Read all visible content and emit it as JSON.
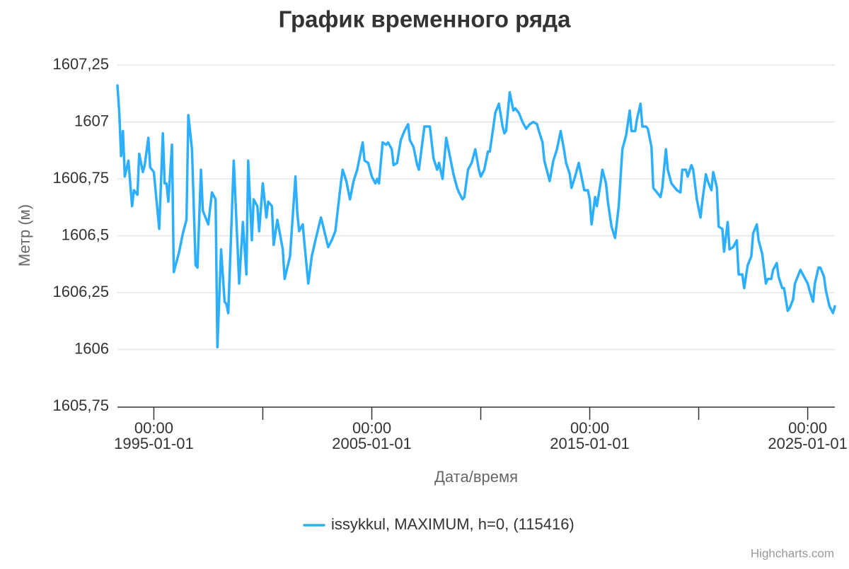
{
  "chart_data": {
    "type": "line",
    "title": "График временного ряда",
    "xlabel": "Дата/время",
    "ylabel": "Метр (м)",
    "credits": "Highcharts.com",
    "x": [
      "1993-05-01",
      "1993-06-01",
      "1993-07-01",
      "1993-08-01",
      "1993-09-01",
      "1993-11-01",
      "1994-01-01",
      "1994-02-01",
      "1994-04-01",
      "1994-05-01",
      "1994-07-01",
      "1994-08-01",
      "1994-10-01",
      "1994-11-01",
      "1995-01-01",
      "1995-04-01",
      "1995-06-01",
      "1995-07-01",
      "1995-08-01",
      "1995-09-01",
      "1995-11-01",
      "1995-12-01",
      "1996-03-01",
      "1996-05-01",
      "1996-07-01",
      "1996-08-01",
      "1996-10-01",
      "1996-12-01",
      "1997-01-01",
      "1997-03-01",
      "1997-04-01",
      "1997-07-01",
      "1997-09-01",
      "1997-11-01",
      "1997-12-01",
      "1998-02-01",
      "1998-04-01",
      "1998-05-01",
      "1998-06-01",
      "1998-09-01",
      "1998-12-01",
      "1999-02-01",
      "1999-04-01",
      "1999-05-01",
      "1999-07-01",
      "1999-08-01",
      "1999-10-01",
      "1999-11-01",
      "2000-01-01",
      "2000-03-01",
      "2000-04-01",
      "2000-06-01",
      "2000-07-01",
      "2000-09-01",
      "2000-12-01",
      "2001-01-01",
      "2001-04-01",
      "2001-07-01",
      "2001-08-01",
      "2001-09-01",
      "2001-11-01",
      "2001-12-01",
      "2002-02-01",
      "2002-04-01",
      "2002-06-01",
      "2002-09-01",
      "2002-10-01",
      "2003-01-01",
      "2003-03-01",
      "2003-05-01",
      "2003-08-01",
      "2003-09-01",
      "2003-11-01",
      "2004-01-01",
      "2004-03-01",
      "2004-05-01",
      "2004-08-01",
      "2004-09-01",
      "2004-11-01",
      "2005-01-01",
      "2005-03-01",
      "2005-04-01",
      "2005-05-01",
      "2005-07-01",
      "2005-09-01",
      "2005-10-01",
      "2005-12-01",
      "2006-01-01",
      "2006-03-01",
      "2006-05-01",
      "2006-07-01",
      "2006-09-01",
      "2006-10-01",
      "2006-12-01",
      "2007-02-01",
      "2007-03-01",
      "2007-06-01",
      "2007-07-01",
      "2007-09-01",
      "2007-11-01",
      "2008-01-01",
      "2008-02-01",
      "2008-04-01",
      "2008-06-01",
      "2008-08-01",
      "2008-10-01",
      "2008-12-01",
      "2009-01-01",
      "2009-03-01",
      "2009-04-01",
      "2009-06-01",
      "2009-08-01",
      "2009-10-01",
      "2009-12-01",
      "2010-01-01",
      "2010-03-01",
      "2010-05-01",
      "2010-06-01",
      "2010-08-01",
      "2010-09-01",
      "2010-11-01",
      "2011-01-01",
      "2011-02-01",
      "2011-03-01",
      "2011-05-01",
      "2011-07-01",
      "2011-08-01",
      "2011-10-01",
      "2011-12-01",
      "2012-02-01",
      "2012-04-01",
      "2012-06-01",
      "2012-08-01",
      "2012-09-01",
      "2012-11-01",
      "2012-12-01",
      "2013-03-01",
      "2013-05-01",
      "2013-07-01",
      "2013-09-01",
      "2013-11-01",
      "2013-12-01",
      "2014-02-01",
      "2014-03-01",
      "2014-05-01",
      "2014-07-01",
      "2014-09-01",
      "2014-10-01",
      "2014-12-01",
      "2015-01-01",
      "2015-02-01",
      "2015-04-01",
      "2015-05-01",
      "2015-07-01",
      "2015-08-01",
      "2015-10-01",
      "2015-11-01",
      "2016-01-01",
      "2016-03-01",
      "2016-05-01",
      "2016-07-01",
      "2016-09-01",
      "2016-11-01",
      "2016-12-01",
      "2017-02-01",
      "2017-03-01",
      "2017-05-01",
      "2017-06-01",
      "2017-08-01",
      "2017-09-01",
      "2017-11-01",
      "2017-12-01",
      "2018-02-01",
      "2018-04-01",
      "2018-05-01",
      "2018-07-01",
      "2018-08-01",
      "2018-10-01",
      "2018-12-01",
      "2019-01-01",
      "2019-03-01",
      "2019-04-01",
      "2019-06-01",
      "2019-07-01",
      "2019-09-01",
      "2019-10-01",
      "2019-12-01",
      "2020-02-01",
      "2020-03-01",
      "2020-05-01",
      "2020-06-01",
      "2020-08-01",
      "2020-09-01",
      "2020-11-01",
      "2020-12-01",
      "2021-02-01",
      "2021-03-01",
      "2021-05-01",
      "2021-06-01",
      "2021-08-01",
      "2021-10-01",
      "2021-11-01",
      "2022-01-01",
      "2022-02-01",
      "2022-04-01",
      "2022-06-01",
      "2022-07-01",
      "2022-09-01",
      "2022-10-01",
      "2022-12-01",
      "2023-02-01",
      "2023-03-01",
      "2023-05-01",
      "2023-06-01",
      "2023-08-01",
      "2023-09-01",
      "2023-11-01",
      "2023-12-01",
      "2024-02-01",
      "2024-03-01",
      "2024-05-01",
      "2024-06-01",
      "2024-08-01",
      "2024-09-01",
      "2024-11-01",
      "2025-01-01",
      "2025-02-01",
      "2025-04-01",
      "2025-05-01",
      "2025-07-01",
      "2025-08-01",
      "2025-10-01",
      "2025-11-01",
      "2026-01-01",
      "2026-03-01",
      "2026-04-01"
    ],
    "series": [
      {
        "name": "issykkul, MAXIMUM, h=0, (115416)",
        "color": "#2caffe",
        "values": [
          1607.16,
          1607.04,
          1606.85,
          1606.96,
          1606.76,
          1606.83,
          1606.63,
          1606.7,
          1606.68,
          1606.86,
          1606.78,
          1606.81,
          1606.93,
          1606.8,
          1606.78,
          1606.53,
          1606.95,
          1606.73,
          1606.73,
          1606.65,
          1606.9,
          1606.34,
          1606.43,
          1606.51,
          1606.57,
          1607.03,
          1606.88,
          1606.37,
          1606.36,
          1606.79,
          1606.61,
          1606.55,
          1606.69,
          1606.66,
          1606.01,
          1606.44,
          1606.21,
          1606.2,
          1606.16,
          1606.83,
          1606.29,
          1606.56,
          1606.33,
          1606.83,
          1606.48,
          1606.66,
          1606.63,
          1606.52,
          1606.73,
          1606.58,
          1606.65,
          1606.63,
          1606.46,
          1606.57,
          1606.44,
          1606.31,
          1606.41,
          1606.76,
          1606.6,
          1606.52,
          1606.55,
          1606.46,
          1606.29,
          1606.41,
          1606.48,
          1606.58,
          1606.55,
          1606.45,
          1606.48,
          1606.52,
          1606.73,
          1606.79,
          1606.74,
          1606.66,
          1606.74,
          1606.79,
          1606.91,
          1606.83,
          1606.82,
          1606.76,
          1606.73,
          1606.75,
          1606.73,
          1606.91,
          1606.9,
          1606.91,
          1606.88,
          1606.81,
          1606.82,
          1606.92,
          1606.96,
          1606.99,
          1606.92,
          1606.89,
          1606.81,
          1606.79,
          1606.98,
          1606.98,
          1606.98,
          1606.84,
          1606.79,
          1606.82,
          1606.75,
          1606.93,
          1606.85,
          1606.77,
          1606.71,
          1606.69,
          1606.66,
          1606.67,
          1606.79,
          1606.82,
          1606.88,
          1606.79,
          1606.76,
          1606.79,
          1606.87,
          1606.87,
          1606.98,
          1607.04,
          1607.08,
          1606.98,
          1606.95,
          1606.96,
          1607.13,
          1607.05,
          1607.06,
          1607.04,
          1607.0,
          1606.97,
          1606.99,
          1607.0,
          1606.99,
          1606.96,
          1606.91,
          1606.83,
          1606.74,
          1606.83,
          1606.88,
          1606.96,
          1606.87,
          1606.82,
          1606.77,
          1606.71,
          1606.76,
          1606.82,
          1606.74,
          1606.7,
          1606.7,
          1606.66,
          1606.55,
          1606.67,
          1606.63,
          1606.73,
          1606.79,
          1606.73,
          1606.65,
          1606.54,
          1606.49,
          1606.63,
          1606.88,
          1606.94,
          1607.05,
          1606.96,
          1606.96,
          1607.01,
          1607.08,
          1606.98,
          1606.98,
          1606.97,
          1606.89,
          1606.71,
          1606.69,
          1606.67,
          1606.71,
          1606.88,
          1606.79,
          1606.73,
          1606.71,
          1606.7,
          1606.69,
          1606.79,
          1606.79,
          1606.76,
          1606.81,
          1606.79,
          1606.66,
          1606.58,
          1606.65,
          1606.77,
          1606.74,
          1606.7,
          1606.78,
          1606.71,
          1606.54,
          1606.53,
          1606.43,
          1606.56,
          1606.44,
          1606.45,
          1606.48,
          1606.33,
          1606.33,
          1606.27,
          1606.37,
          1606.41,
          1606.51,
          1606.55,
          1606.48,
          1606.42,
          1606.29,
          1606.31,
          1606.31,
          1606.35,
          1606.38,
          1606.32,
          1606.27,
          1606.27,
          1606.17,
          1606.18,
          1606.22,
          1606.29,
          1606.33,
          1606.35,
          1606.32,
          1606.29,
          1606.26,
          1606.21,
          1606.29,
          1606.36,
          1606.36,
          1606.32,
          1606.26,
          1606.19,
          1606.16,
          1606.19
        ]
      }
    ],
    "xlim": [
      "1993-05-01",
      "2026-04-01"
    ],
    "xticks": [
      {
        "value": "1995-01-01",
        "label": [
          "00:00",
          "1995-01-01"
        ]
      },
      {
        "value": "2000-01-01",
        "label": null
      },
      {
        "value": "2005-01-01",
        "label": [
          "00:00",
          "2005-01-01"
        ]
      },
      {
        "value": "2010-01-01",
        "label": null
      },
      {
        "value": "2015-01-01",
        "label": [
          "00:00",
          "2015-01-01"
        ]
      },
      {
        "value": "2020-01-01",
        "label": null
      },
      {
        "value": "2025-01-01",
        "label": [
          "00:00",
          "2025-01-01"
        ]
      }
    ],
    "ylim": [
      1605.75,
      1607.25
    ],
    "yticks": [
      {
        "value": 1605.75,
        "label": "1605,75"
      },
      1606,
      {
        "value": 1606.25,
        "label": "1606,25"
      },
      {
        "value": 1606.5,
        "label": "1606,5"
      },
      {
        "value": 1606.75,
        "label": "1606,75"
      },
      1607,
      {
        "value": 1607.25,
        "label": "1607,25"
      }
    ],
    "grid": true,
    "legend": "bottom"
  }
}
